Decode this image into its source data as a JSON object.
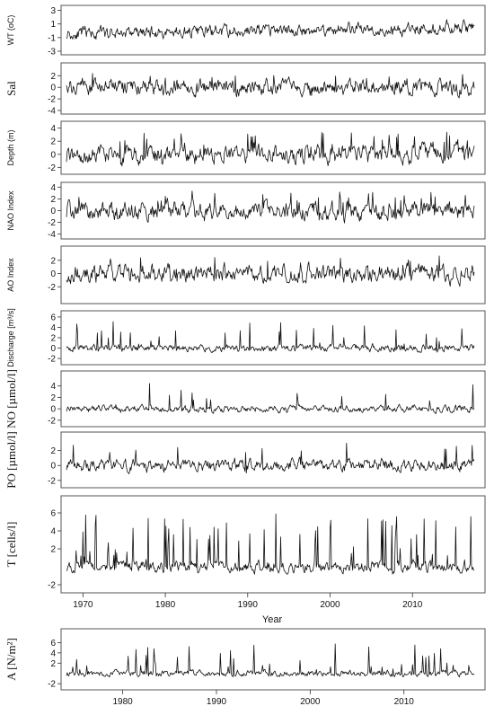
{
  "chart_data": [
    {
      "type": "line",
      "ylabel": "WT (oC)",
      "yticks": [
        3,
        1,
        -1,
        -3
      ],
      "ylim": [
        -3,
        3.2
      ],
      "xlim": [
        1968,
        2017.5
      ],
      "seed": 11,
      "trend": 0.9,
      "noise": 0.7,
      "spikes": 0.0
    },
    {
      "type": "line",
      "ylabel": "Sal",
      "yticks": [
        2,
        0,
        -2,
        -4
      ],
      "ylim": [
        -4,
        3.6
      ],
      "xlim": [
        1968,
        2017.5
      ],
      "seed": 23,
      "trend": 0.0,
      "noise": 1.0,
      "spikes": 0.05
    },
    {
      "type": "line",
      "ylabel": "Depth (m)",
      "yticks": [
        4,
        2,
        0,
        -2
      ],
      "ylim": [
        -2.5,
        4.5
      ],
      "xlim": [
        1968,
        2017.5
      ],
      "seed": 37,
      "trend": 0.3,
      "noise": 1.0,
      "spikes": 0.08
    },
    {
      "type": "line",
      "ylabel": "NAO Index",
      "yticks": [
        4,
        2,
        0,
        -2,
        -4
      ],
      "ylim": [
        -4.2,
        4.2
      ],
      "xlim": [
        1968,
        2017.5
      ],
      "seed": 41,
      "trend": 0.0,
      "noise": 1.1,
      "spikes": 0.05
    },
    {
      "type": "line",
      "ylabel": "AO Index",
      "yticks": [
        2,
        0,
        -2
      ],
      "ylim": [
        -4,
        3.6
      ],
      "xlim": [
        1968,
        2017.5
      ],
      "seed": 53,
      "trend": 0.0,
      "noise": 1.0,
      "spikes": 0.04
    },
    {
      "type": "line",
      "ylabel": "Discharge [m³/s]",
      "yticks": [
        6,
        4,
        2,
        0,
        -2
      ],
      "ylim": [
        -2.5,
        6.5
      ],
      "xlim": [
        1968,
        2017.5
      ],
      "seed": 61,
      "trend": 0.0,
      "noise": 0.5,
      "spikes": 0.06
    },
    {
      "type": "line",
      "ylabel": "NO [µmol/l]",
      "yticks": [
        4,
        2,
        0,
        -2
      ],
      "ylim": [
        -2.5,
        6
      ],
      "xlim": [
        1968,
        2017.5
      ],
      "seed": 71,
      "trend": 0.0,
      "noise": 0.45,
      "spikes": 0.03
    },
    {
      "type": "line",
      "ylabel": "PO [µmol/l]",
      "yticks": [
        2,
        0,
        -2
      ],
      "ylim": [
        -2.5,
        4
      ],
      "xlim": [
        1968,
        2017.5
      ],
      "seed": 83,
      "trend": 0.0,
      "noise": 0.6,
      "spikes": 0.02
    },
    {
      "type": "line",
      "ylabel": "T [cells/l]",
      "yticks": [
        6,
        4,
        2,
        -2
      ],
      "ylim": [
        -2.5,
        7.5
      ],
      "xlim": [
        1968,
        2017.5
      ],
      "seed": 97,
      "trend": 0.0,
      "noise": 0.45,
      "spikes": 0.1
    },
    {
      "type": "line",
      "ylabel": "A [N/m²]",
      "yticks": [
        6,
        4,
        2,
        -2
      ],
      "ylim": [
        -2.5,
        8
      ],
      "xlim": [
        1974,
        2017.5
      ],
      "seed": 107,
      "trend": 0.0,
      "noise": 0.45,
      "spikes": 0.07
    }
  ],
  "xaxis_main": {
    "ticks": [
      1970,
      1980,
      1990,
      2000,
      2010
    ],
    "label": "Year"
  },
  "xaxis_bottom": {
    "ticks": [
      1980,
      1990,
      2000,
      2010
    ]
  }
}
